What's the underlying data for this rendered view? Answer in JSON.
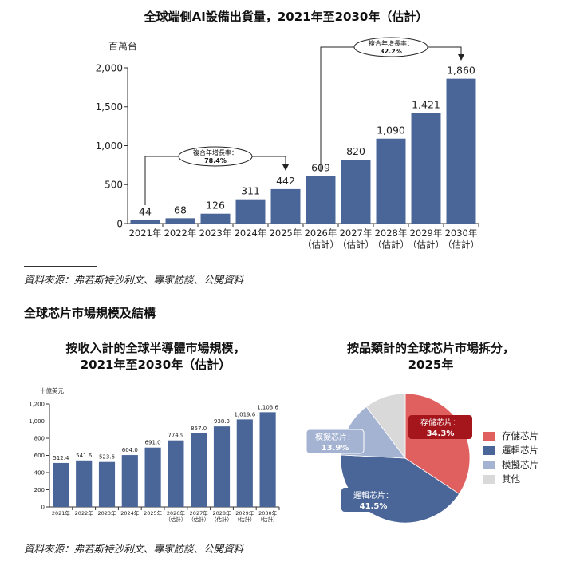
{
  "chart1": {
    "title": "全球端側AI設備出貨量，2021年至2030年（估計）",
    "ylabel": "百萬台",
    "bar_color": "#4a6699",
    "chart_data": {
      "type": "bar",
      "categories": [
        "2021年",
        "2022年",
        "2023年",
        "2024年",
        "2025年",
        "2026年",
        "2027年",
        "2028年",
        "2029年",
        "2030年"
      ],
      "category_notes": [
        "",
        "",
        "",
        "",
        "",
        "（估計）",
        "（估計）",
        "（估計）",
        "（估計）",
        "（估計）"
      ],
      "values": [
        44,
        68,
        126,
        311,
        442,
        609,
        820,
        1090,
        1421,
        1860
      ],
      "value_labels": [
        "44",
        "68",
        "126",
        "311",
        "442",
        "609",
        "820",
        "1,090",
        "1,421",
        "1,860"
      ],
      "ylim": [
        0,
        2000
      ],
      "yticks": [
        0,
        500,
        1000,
        1500,
        2000
      ],
      "ytick_labels": [
        "0",
        "500",
        "1,000",
        "1,500",
        "2,000"
      ],
      "annotations": [
        {
          "label": "複合年增長率：",
          "value": "78.4%",
          "from_category": "2021年",
          "to_category": "2025年"
        },
        {
          "label": "複合年增長率：",
          "value": "32.2%",
          "from_category": "2026年",
          "to_category": "2030年"
        }
      ]
    }
  },
  "source1": "資料來源：弗若斯特沙利文、專家訪談、公開資料",
  "section_heading": "全球芯片市場規模及結構",
  "chart2": {
    "title_line1": "按收入計的全球半導體市場規模，",
    "title_line2": "2021年至2030年（估計）",
    "ylabel": "十億美元",
    "bar_color": "#4a6699",
    "chart_data": {
      "type": "bar",
      "categories": [
        "2021年",
        "2022年",
        "2023年",
        "2024年",
        "2025年",
        "2026年",
        "2027年",
        "2028年",
        "2029年",
        "2030年"
      ],
      "category_notes": [
        "",
        "",
        "",
        "",
        "",
        "（估計）",
        "（估計）",
        "（估計）",
        "（估計）",
        "（估計）"
      ],
      "values": [
        512.4,
        541.6,
        523.6,
        604.0,
        691.0,
        774.9,
        857.0,
        938.3,
        1019.6,
        1103.6
      ],
      "value_labels": [
        "512.4",
        "541.6",
        "523.6",
        "604.0",
        "691.0",
        "774.9",
        "857.0",
        "938.3",
        "1,019.6",
        "1,103.6"
      ],
      "ylim": [
        0,
        1200
      ],
      "yticks": [
        0,
        200,
        400,
        600,
        800,
        1000,
        1200
      ],
      "ytick_labels": [
        "0",
        "200",
        "400",
        "600",
        "800",
        "1,000",
        "1,200"
      ]
    }
  },
  "chart3": {
    "title_line1": "按品類計的全球芯片市場拆分，",
    "title_line2": "2025年",
    "chart_data": {
      "type": "pie",
      "slices": [
        {
          "name": "存儲芯片",
          "label": "存儲芯片：",
          "value": 34.3,
          "value_label": "34.3%",
          "color": "#e06060",
          "callout_color": "#a5161c"
        },
        {
          "name": "邏輯芯片",
          "label": "邏輯芯片：",
          "value": 41.5,
          "value_label": "41.5%",
          "color": "#4a6699",
          "callout_color": "#4a6699"
        },
        {
          "name": "模擬芯片",
          "label": "模擬芯片：",
          "value": 13.9,
          "value_label": "13.9%",
          "color": "#a4b3d2",
          "callout_color": "#a4b3d2"
        },
        {
          "name": "其他",
          "value": 10.3,
          "color": "#d9d9d9"
        }
      ],
      "legend": [
        "存儲芯片",
        "邏輯芯片",
        "模擬芯片",
        "其他"
      ],
      "legend_position": "right"
    }
  },
  "source2": "資料來源：弗若斯特沙利文、專家訪談、公開資料"
}
